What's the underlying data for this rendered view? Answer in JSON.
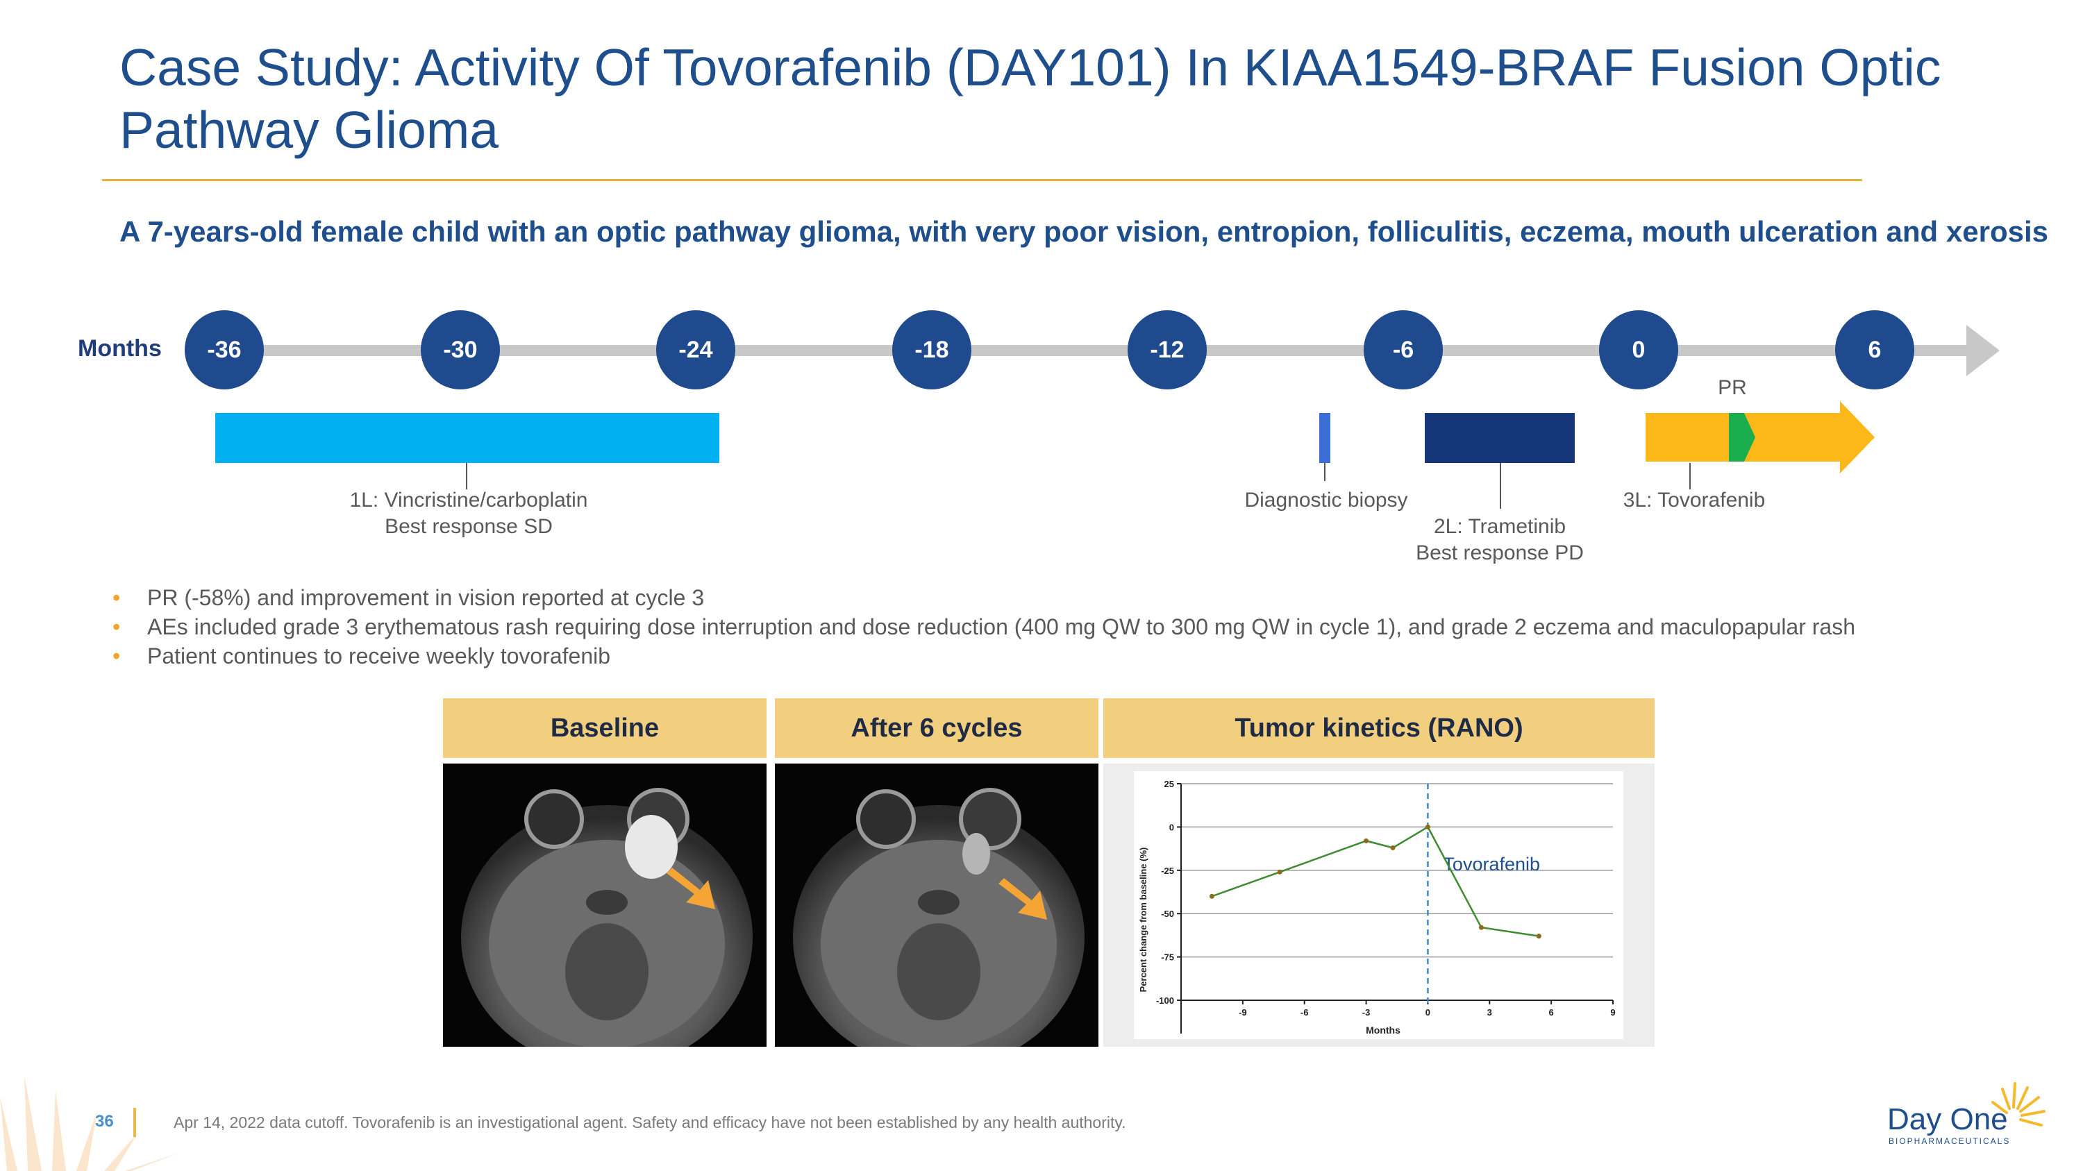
{
  "title": "Case Study: Activity Of Tovorafenib (DAY101) In KIAA1549-BRAF Fusion Optic Pathway Glioma",
  "subtitle": "A 7-years-old female child with an optic pathway glioma, with very poor vision, entropion, folliculitis, eczema, mouth ulceration and xerosis",
  "timeline": {
    "axis_label": "Months",
    "months": [
      "-36",
      "-30",
      "-24",
      "-18",
      "-12",
      "-6",
      "0",
      "6"
    ],
    "pr_label": "PR",
    "labels": {
      "first_line_1": "1L: Vincristine/carboplatin",
      "first_line_2": "Best response SD",
      "biopsy": "Diagnostic biopsy",
      "second_line_1": "2L: Trametinib",
      "second_line_2": "Best response PD",
      "third_line": "3L: Tovorafenib"
    },
    "colors": {
      "first_line": "#00B0F0",
      "biopsy": "#3A6FD8",
      "second_line": "#15377A",
      "third_line": "#FBB818",
      "pr_marker": "#1AAE4E"
    }
  },
  "bullets": [
    "PR (-58%) and improvement in vision reported at cycle 3",
    "AEs included grade 3 erythematous rash requiring dose interruption and dose reduction (400 mg QW to 300 mg QW in cycle 1), and grade 2 eczema and maculopapular rash",
    "Patient continues to receive weekly tovorafenib"
  ],
  "panels": {
    "baseline": "Baseline",
    "after": "After 6 cycles",
    "kinetics": "Tumor kinetics (RANO)"
  },
  "chart_data": {
    "type": "line",
    "title": "Tumor kinetics (RANO)",
    "xlabel": "Months",
    "ylabel": "Percent change from baseline (%)",
    "xlim": [
      -12,
      9
    ],
    "ylim": [
      -100,
      25
    ],
    "xticks": [
      -9,
      -6,
      -3,
      0,
      3,
      6,
      9
    ],
    "yticks": [
      25,
      0,
      -25,
      -50,
      -75,
      -100
    ],
    "series": [
      {
        "name": "Percent change",
        "x": [
          -10.5,
          -7.2,
          -3,
          -1.7,
          0,
          2.6,
          5.4
        ],
        "y": [
          -40,
          -26,
          -8,
          -12,
          0,
          -58,
          -63
        ],
        "color": "#3D8C2F"
      }
    ],
    "annotation": {
      "text": "Tovorafenib",
      "x": 0
    },
    "gridlines": [
      25,
      0,
      -25,
      -50,
      -75
    ]
  },
  "footer": {
    "page_number": "36",
    "disclaimer": "Apr 14, 2022 data cutoff. Tovorafenib is an investigational agent.  Safety and efficacy have not been established by any health authority."
  },
  "logo": {
    "name": "Day One",
    "sub": "BIOPHARMACEUTICALS"
  }
}
